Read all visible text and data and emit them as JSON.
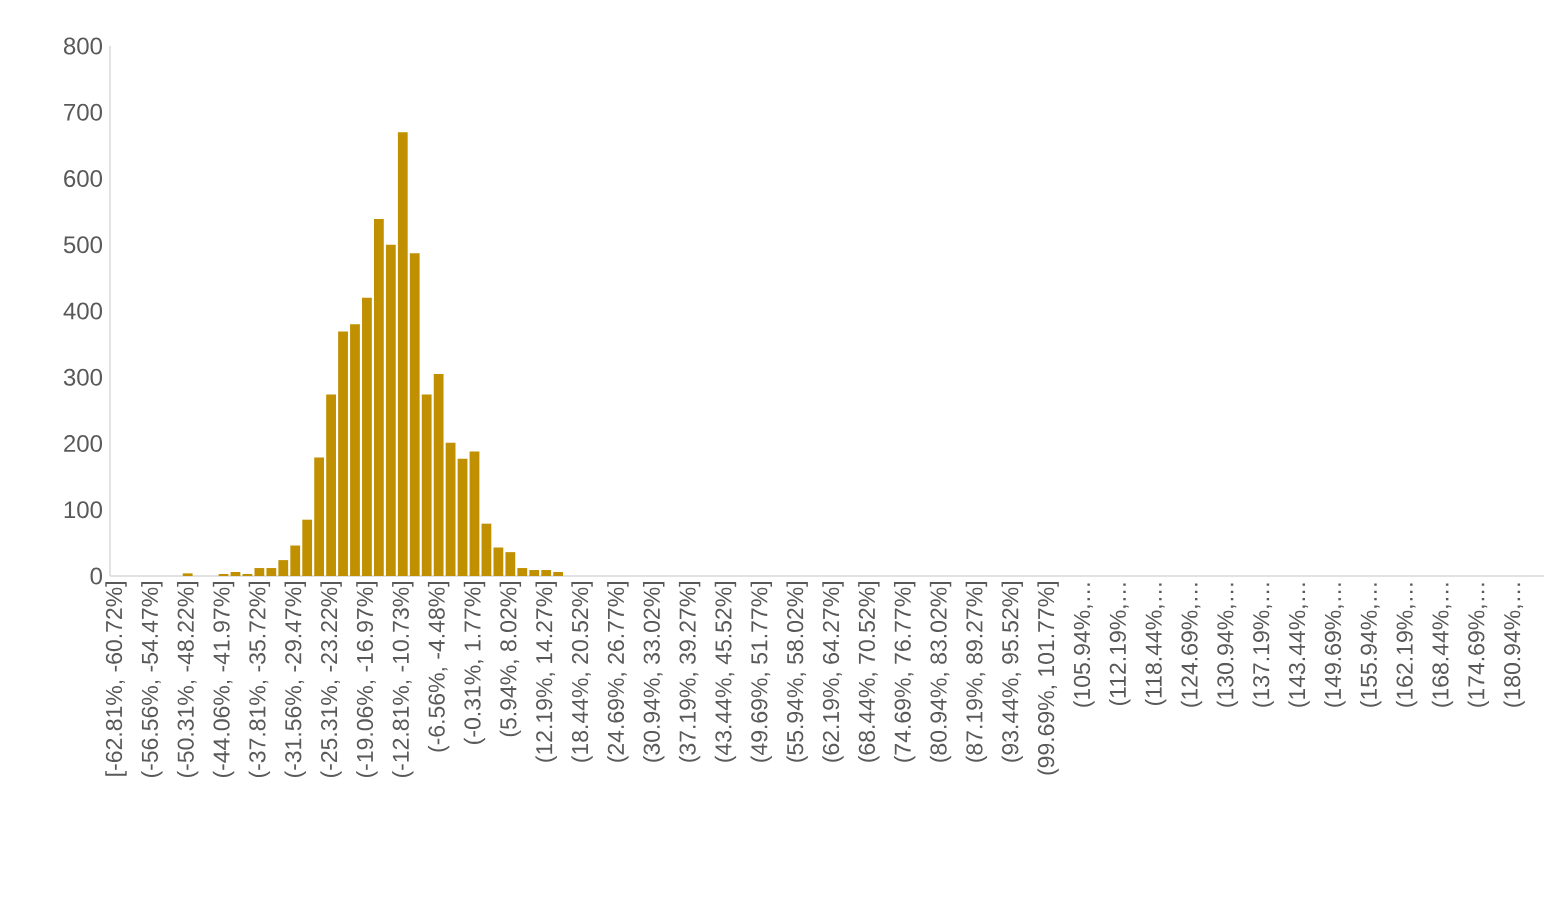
{
  "chart_data": {
    "type": "bar",
    "categories": [
      "[-62.81%, -60.72%]",
      null,
      null,
      "(-56.56%, -54.47%]",
      null,
      null,
      "(-50.31%, -48.22%]",
      null,
      null,
      "(-44.06%, -41.97%]",
      null,
      null,
      "(-37.81%, -35.72%]",
      null,
      null,
      "(-31.56%, -29.47%]",
      null,
      null,
      "(-25.31%, -23.22%]",
      null,
      null,
      "(-19.06%, -16.97%]",
      null,
      null,
      "(-12.81%, -10.73%]",
      null,
      null,
      "(-6.56%, -4.48%]",
      null,
      null,
      "(-0.31%, 1.77%]",
      null,
      null,
      "(5.94%, 8.02%]",
      null,
      null,
      "(12.19%, 14.27%]",
      null,
      null,
      "(18.44%, 20.52%]",
      null,
      null,
      "(24.69%, 26.77%]",
      null,
      null,
      "(30.94%, 33.02%]",
      null,
      null,
      "(37.19%, 39.27%]",
      null,
      null,
      "(43.44%, 45.52%]",
      null,
      null,
      "(49.69%, 51.77%]",
      null,
      null,
      "(55.94%, 58.02%]",
      null,
      null,
      "(62.19%, 64.27%]",
      null,
      null,
      "(68.44%, 70.52%]",
      null,
      null,
      "(74.69%, 76.77%]",
      null,
      null,
      "(80.94%, 83.02%]",
      null,
      null,
      "(87.19%, 89.27%]",
      null,
      null,
      "(93.44%, 95.52%]",
      null,
      null,
      "(99.69%, 101.77%]",
      null,
      null,
      "(105.94%,…",
      null,
      null,
      "(112.19%,…",
      null,
      null,
      "(118.44%,…",
      null,
      null,
      "(124.69%,…",
      null,
      null,
      "(130.94%,…",
      null,
      null,
      "(137.19%,…",
      null,
      null,
      "(143.44%,…",
      null,
      null,
      "(149.69%,…",
      null,
      null,
      "(155.94%,…",
      null,
      null,
      "(162.19%,…",
      null,
      null,
      "(168.44%,…",
      null,
      null,
      "(174.69%,…",
      null,
      null,
      "(180.94%,…",
      null,
      null
    ],
    "values": [
      0,
      0,
      0,
      0,
      0,
      0,
      4,
      0,
      0,
      3,
      6,
      3,
      12,
      12,
      24,
      46,
      85,
      179,
      274,
      369,
      380,
      420,
      539,
      500,
      670,
      487,
      274,
      305,
      201,
      177,
      188,
      79,
      43,
      36,
      12,
      9,
      9,
      6,
      0,
      0,
      0,
      0,
      0,
      0,
      0,
      0,
      0,
      0,
      0,
      0,
      0,
      0,
      0,
      0,
      0,
      0,
      0,
      0,
      0,
      0,
      0,
      0,
      0,
      0,
      0,
      0,
      0,
      0,
      0,
      0,
      0,
      0,
      0,
      0,
      0,
      0,
      0,
      0,
      0,
      0,
      0,
      0,
      0,
      0,
      0,
      0,
      0,
      0,
      0,
      0,
      0,
      0,
      0,
      0,
      0,
      0,
      0,
      0,
      0,
      0,
      0,
      0,
      0,
      0,
      0,
      0,
      0,
      0,
      0,
      0,
      0,
      0,
      0,
      0,
      0,
      0,
      0,
      0,
      0,
      0
    ],
    "color": "#c09000",
    "ylim": [
      0,
      800
    ],
    "yticks": [
      0,
      100,
      200,
      300,
      400,
      500,
      600,
      700,
      800
    ]
  }
}
